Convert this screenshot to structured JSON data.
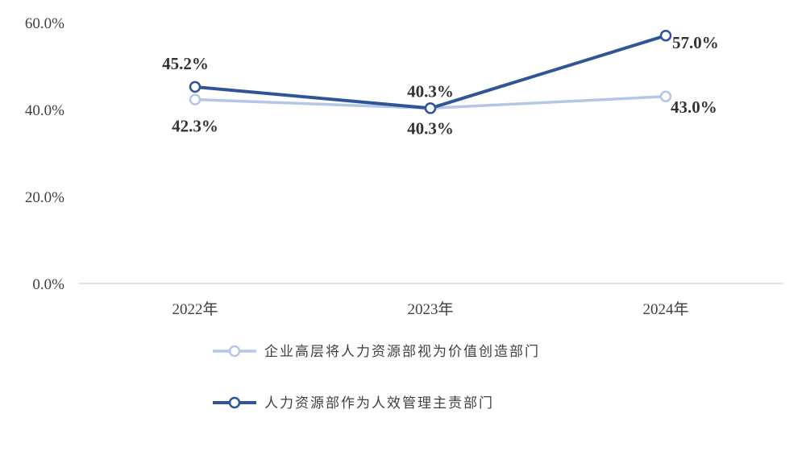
{
  "chart_data": {
    "type": "line",
    "categories": [
      "2022年",
      "2023年",
      "2024年"
    ],
    "ylim": [
      0,
      60
    ],
    "yticks": [
      "0.0%",
      "20.0%",
      "40.0%",
      "60.0%"
    ],
    "yticks_values": [
      0,
      20,
      40,
      60
    ],
    "grid": false,
    "legend_position": "bottom",
    "series": [
      {
        "name": "企业高层将人力资源部视为价值创造部门",
        "values": [
          42.3,
          40.3,
          43.0
        ],
        "labels": [
          "42.3%",
          "40.3%",
          "43.0%"
        ],
        "color": "#b4c7e7"
      },
      {
        "name": "人力资源部作为人效管理主责部门",
        "values": [
          45.2,
          40.3,
          57.0
        ],
        "labels": [
          "45.2%",
          "40.3%",
          "57.0%"
        ],
        "color": "#2f5597"
      }
    ]
  }
}
